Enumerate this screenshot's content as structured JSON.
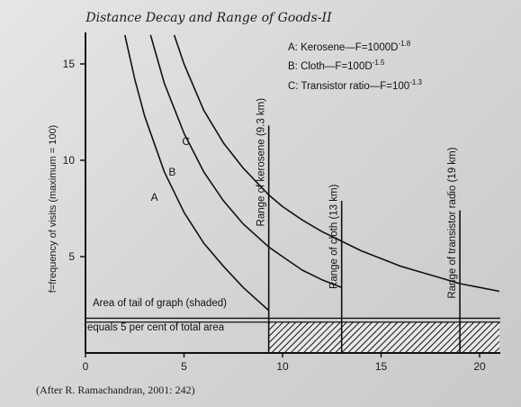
{
  "chart_data": {
    "type": "line",
    "title": "Distance Decay and Range of Goods-II",
    "ylabel": "f=frequency of visits (maximum = 100)",
    "xlabel": "",
    "xlim": [
      0,
      21
    ],
    "ylim": [
      0,
      16.5
    ],
    "xticks": [
      "0",
      "5",
      "10",
      "15",
      "20"
    ],
    "yticks": [
      "5",
      "10",
      "15"
    ],
    "legend": [
      {
        "key": "A",
        "label": "Kerosene",
        "formula": "F=1000D",
        "exp": "-1.8"
      },
      {
        "key": "B",
        "label": "Cloth",
        "formula": "F=100D",
        "exp": "-1.5"
      },
      {
        "key": "C",
        "label": "Transistor ratio",
        "formula": "F=100",
        "exp": "-1.3"
      }
    ],
    "series": [
      {
        "name": "A",
        "x": [
          2.0,
          2.5,
          3.0,
          4.0,
          5.0,
          6.0,
          7.0,
          8.0,
          9.3
        ],
        "y": [
          16.5,
          14.2,
          12.3,
          9.4,
          7.3,
          5.7,
          4.5,
          3.4,
          2.2
        ]
      },
      {
        "name": "B",
        "x": [
          3.3,
          4.0,
          5.0,
          6.0,
          7.0,
          8.0,
          9.3,
          10.0,
          11.0,
          12.0,
          13.0
        ],
        "y": [
          16.5,
          14.0,
          11.4,
          9.4,
          7.9,
          6.7,
          5.5,
          5.0,
          4.3,
          3.8,
          3.4
        ]
      },
      {
        "name": "C",
        "x": [
          4.5,
          5.0,
          6.0,
          7.0,
          8.0,
          9.3,
          10.0,
          11.0,
          12.0,
          13.0,
          14.0,
          15.0,
          16.0,
          17.0,
          18.0,
          19.0,
          20.0,
          21.0
        ],
        "y": [
          16.5,
          15.0,
          12.6,
          10.9,
          9.6,
          8.2,
          7.6,
          6.9,
          6.3,
          5.8,
          5.3,
          4.9,
          4.5,
          4.2,
          3.9,
          3.6,
          3.4,
          3.2
        ]
      }
    ],
    "curve_labels": [
      {
        "text": "A",
        "x": 3.5,
        "y": 7.9
      },
      {
        "text": "B",
        "x": 4.4,
        "y": 9.2
      },
      {
        "text": "C",
        "x": 5.1,
        "y": 10.8
      }
    ],
    "ranges": [
      {
        "label": "Range of kerosene (9.3 km)",
        "x": 9.3,
        "top": 11.8
      },
      {
        "label": "Range of cloth (13 km)",
        "x": 13.0,
        "top": 7.9
      },
      {
        "label": "Range of transistor radio (19 km)",
        "x": 19.0,
        "top": 7.4
      }
    ],
    "tail": {
      "note_line1": "Area of tail of graph (shaded)",
      "note_line2": "equals 5 per cent of total area",
      "upper": 1.8,
      "lower": 1.6
    }
  },
  "source": "(After R. Ramachandran, 2001: 242)"
}
